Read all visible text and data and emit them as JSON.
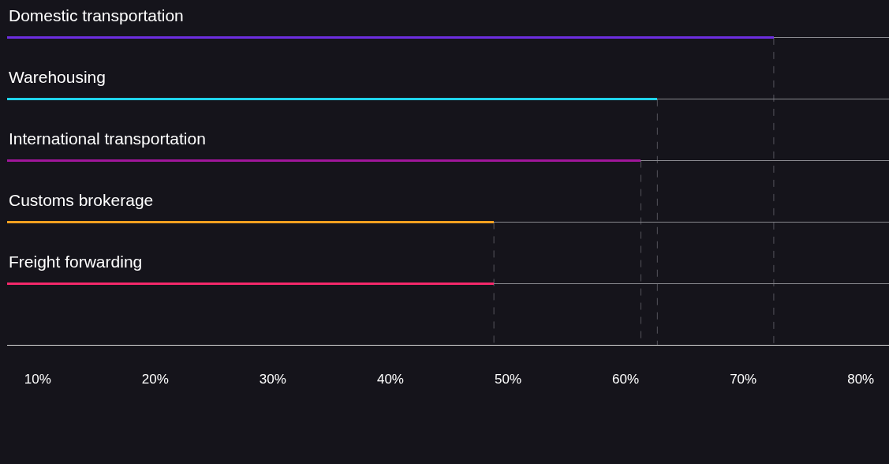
{
  "chart_data": {
    "type": "bar",
    "orientation": "horizontal",
    "categories": [
      "Domestic transportation",
      "Warehousing",
      "International transportation",
      "Customs brokerage",
      "Freight forwarding"
    ],
    "values": [
      72.6,
      62.7,
      61.3,
      48.8,
      48.8
    ],
    "colors": [
      "#6d2ee0",
      "#1fd3ea",
      "#a0169a",
      "#f5a020",
      "#f4286a"
    ],
    "xlim": [
      7.4,
      82.4
    ],
    "xticks": [
      {
        "value": 10,
        "label": "10%"
      },
      {
        "value": 20,
        "label": "20%"
      },
      {
        "value": 30,
        "label": "30%"
      },
      {
        "value": 40,
        "label": "40%"
      },
      {
        "value": 50,
        "label": "50%"
      },
      {
        "value": 60,
        "label": "60%"
      },
      {
        "value": 70,
        "label": "70%"
      },
      {
        "value": 80,
        "label": "80%"
      }
    ],
    "ref_lines": [
      {
        "axis": "x",
        "value": 72.6,
        "color": "#55545c",
        "line_style": "dashed"
      },
      {
        "axis": "x",
        "value": 62.7,
        "color": "#55545c",
        "line_style": "dashed"
      },
      {
        "axis": "x",
        "value": 61.3,
        "color": "#55545c",
        "line_style": "dashed"
      },
      {
        "axis": "x",
        "value": 48.8,
        "color": "#55545c",
        "line_style": "dashed"
      }
    ],
    "grid": "y",
    "legend": false
  }
}
